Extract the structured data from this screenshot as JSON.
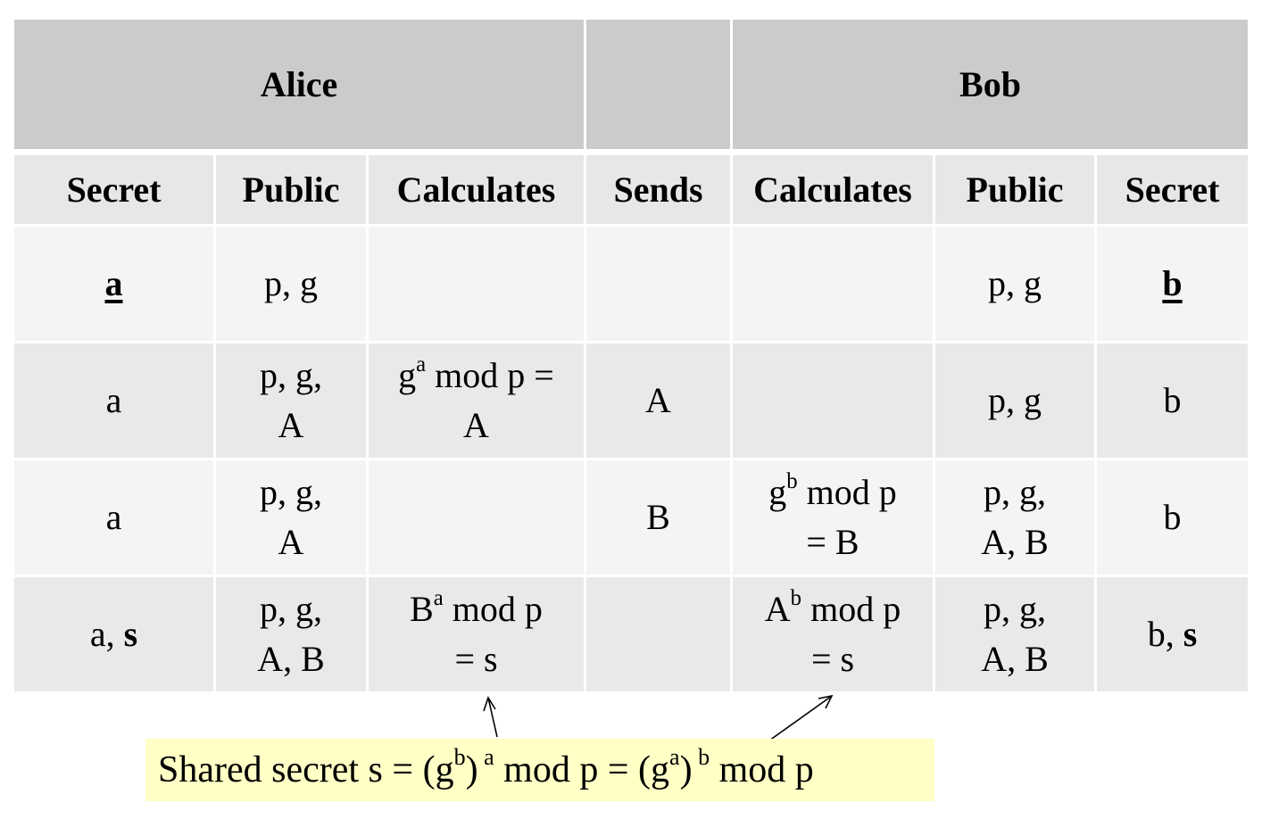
{
  "parties": {
    "alice": "Alice",
    "bob": "Bob"
  },
  "columns": [
    "Secret",
    "Public",
    "Calculates",
    "Sends",
    "Calculates",
    "Public",
    "Secret"
  ],
  "rows": [
    {
      "alice_secret": "a",
      "alice_public_1": "p, g",
      "alice_public_2": "",
      "alice_calc_1": "",
      "alice_calc_2": "",
      "sends": "",
      "bob_calc_1": "",
      "bob_calc_2": "",
      "bob_public_1": "p, g",
      "bob_public_2": "",
      "bob_secret": "b"
    },
    {
      "alice_secret": "a",
      "alice_public_1": "p, g,",
      "alice_public_2": "A",
      "alice_calc_base": "g",
      "alice_calc_exp": "a",
      "alice_calc_rest": " mod p =",
      "alice_calc_2": "A",
      "sends": "A",
      "bob_public_1": "p, g",
      "bob_secret": "b"
    },
    {
      "alice_secret": "a",
      "alice_public_1": "p, g,",
      "alice_public_2": "A",
      "sends": "B",
      "bob_calc_base": "g",
      "bob_calc_exp": "b",
      "bob_calc_rest": " mod p",
      "bob_calc_2": "= B",
      "bob_public_1": "p, g,",
      "bob_public_2": "A, B",
      "bob_secret": "b"
    },
    {
      "alice_secret_plain": "a, ",
      "alice_secret_bold": "s",
      "alice_public_1": "p, g,",
      "alice_public_2": "A, B",
      "alice_calc_base": "B",
      "alice_calc_exp": "a",
      "alice_calc_rest": " mod p",
      "alice_calc_2": "= s",
      "bob_calc_base": "A",
      "bob_calc_exp": "b",
      "bob_calc_rest": " mod p",
      "bob_calc_2": "= s",
      "bob_public_1": "p, g,",
      "bob_public_2": "A, B",
      "bob_secret_plain": "b, ",
      "bob_secret_bold": "s"
    }
  ],
  "caption": {
    "t1": "Shared secret s = (g",
    "e1": "b",
    "t2": ")",
    "e2": " a",
    "t3": " mod p = (g",
    "e3": "a",
    "t4": ")",
    "e4": " b",
    "t5": " mod p"
  }
}
